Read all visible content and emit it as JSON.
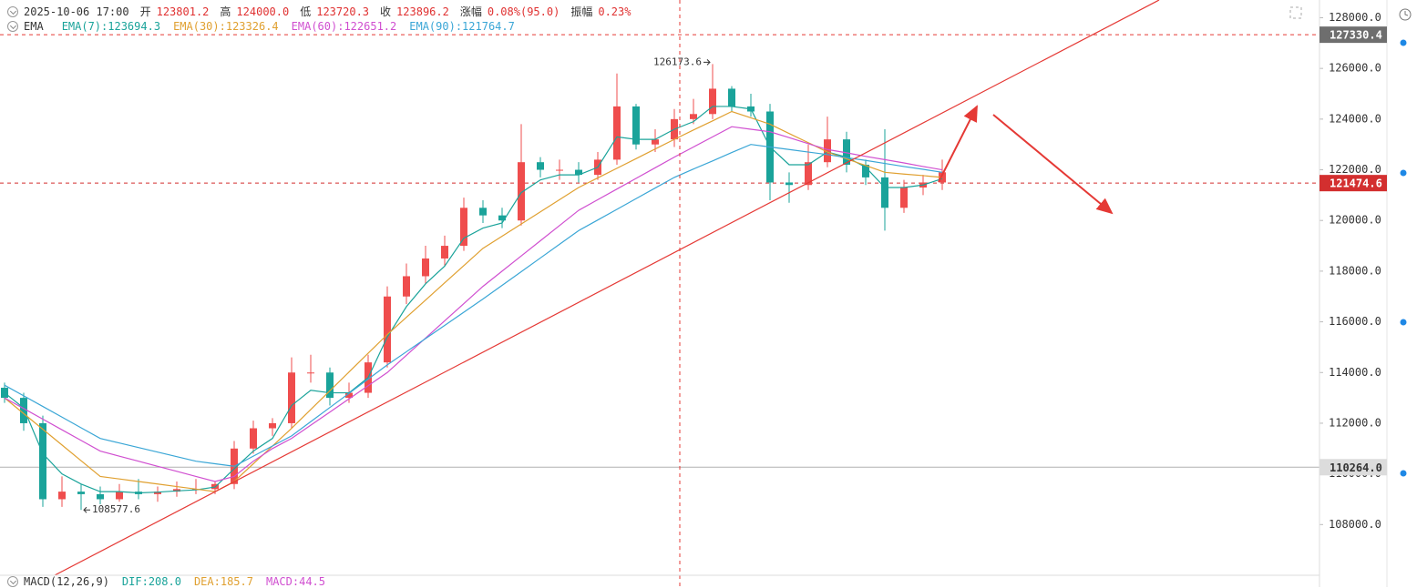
{
  "chart_data": {
    "type": "candlestick",
    "header": {
      "time": "2025-10-06 17:00",
      "fields": [
        {
          "label": "开",
          "value": "123801.2"
        },
        {
          "label": "高",
          "value": "124000.0"
        },
        {
          "label": "低",
          "value": "123720.3"
        },
        {
          "label": "收",
          "value": "123896.2"
        },
        {
          "label": "涨幅",
          "value": "0.08%(95.0)"
        },
        {
          "label": "振幅",
          "value": "0.23%"
        }
      ]
    },
    "indicator": "EMA",
    "macd": {
      "name": "MACD(12,26,9)",
      "items": [
        {
          "text": "DIF:208.0",
          "color": "#1aa39a"
        },
        {
          "text": "DEA:185.7",
          "color": "#e0a030"
        },
        {
          "text": "MACD:44.5",
          "color": "#d04fd0"
        }
      ]
    },
    "up_color": "#ef4d4d",
    "down_color": "#1aa39a",
    "categories": [
      null,
      null,
      null,
      null,
      null,
      null,
      null,
      null,
      null,
      null,
      null,
      null,
      null,
      null,
      null,
      null,
      null,
      null,
      null,
      null,
      null,
      null,
      null,
      null,
      null,
      null,
      null,
      null,
      null,
      null,
      null,
      null,
      null,
      null,
      null,
      null,
      null,
      null,
      null,
      null,
      null,
      null,
      null,
      null,
      null,
      null,
      null,
      null,
      null,
      null
    ],
    "open": [
      113400,
      113000,
      112000,
      109000,
      109300,
      109200,
      109000,
      109300,
      109200,
      109300,
      109400,
      109400,
      109600,
      111000,
      111800,
      112000,
      114000,
      114000,
      113000,
      113200,
      114400,
      117000,
      117800,
      118500,
      119000,
      120500,
      120200,
      120000,
      122300,
      122000,
      122000,
      121800,
      122400,
      124500,
      123000,
      123200,
      124000,
      124200,
      125200,
      124500,
      124300,
      121500,
      121400,
      122300,
      123200,
      122200,
      121700,
      120500,
      121300,
      121500
    ],
    "high": [
      113600,
      113200,
      112300,
      109900,
      109600,
      109500,
      109600,
      109800,
      109500,
      109700,
      109800,
      109700,
      111300,
      112100,
      112200,
      114600,
      114700,
      114200,
      113600,
      114700,
      117400,
      118300,
      119000,
      119400,
      120900,
      120800,
      120500,
      123800,
      122500,
      122400,
      122300,
      122700,
      125800,
      124600,
      123600,
      124400,
      124800,
      126173.6,
      125300,
      125000,
      124600,
      121900,
      123000,
      124100,
      123500,
      122400,
      123600,
      121600,
      121800,
      122400
    ],
    "low": [
      112800,
      111700,
      108700,
      108700,
      108577.6,
      108800,
      108900,
      109000,
      108900,
      109100,
      109200,
      109200,
      109400,
      110800,
      111500,
      111800,
      113600,
      112700,
      112800,
      113000,
      114200,
      116700,
      117500,
      118200,
      118800,
      119900,
      119700,
      119800,
      121700,
      121600,
      121500,
      121600,
      122200,
      122800,
      122700,
      122900,
      123800,
      124000,
      124300,
      124100,
      120800,
      120700,
      121200,
      122100,
      121900,
      121400,
      119600,
      120300,
      121000,
      121200
    ],
    "close": [
      113000,
      112000,
      109000,
      109300,
      109200,
      109000,
      109300,
      109200,
      109300,
      109400,
      109400,
      109600,
      111000,
      111800,
      112000,
      114000,
      114000,
      113000,
      113200,
      114400,
      117000,
      117800,
      118500,
      119000,
      120500,
      120200,
      120000,
      122300,
      122000,
      122000,
      121800,
      122400,
      124500,
      123000,
      123200,
      124000,
      124200,
      125200,
      124500,
      124300,
      121500,
      121400,
      122300,
      123200,
      122200,
      121700,
      120500,
      121300,
      121500,
      121900
    ],
    "series": [
      {
        "name": "EMA(7):123694.3",
        "color": "#1aa39a",
        "values": [
          113200,
          112600,
          110800,
          110000,
          109600,
          109300,
          109300,
          109250,
          109280,
          109330,
          109370,
          109480,
          110200,
          110900,
          111400,
          112700,
          113300,
          113200,
          113200,
          113800,
          115400,
          116600,
          117500,
          118200,
          119300,
          119700,
          119900,
          121100,
          121600,
          121800,
          121800,
          122100,
          123300,
          123200,
          123200,
          123600,
          123900,
          124500,
          124500,
          124400,
          122900,
          122200,
          122200,
          122700,
          122500,
          122100,
          121300,
          121300,
          121400,
          121650
        ]
      },
      {
        "name": "EMA(30):123326.4",
        "color": "#e0a030",
        "values": [
          113000,
          112380,
          111760,
          111140,
          110520,
          109900,
          109800,
          109700,
          109600,
          109500,
          109400,
          109300,
          109700,
          110400,
          111100,
          111800,
          112540,
          113280,
          114020,
          114760,
          115500,
          116180,
          116860,
          117540,
          118220,
          118900,
          119380,
          119860,
          120340,
          120820,
          121300,
          121680,
          122060,
          122440,
          122820,
          123200,
          123570,
          123930,
          124300,
          124050,
          123800,
          123430,
          123070,
          122700,
          122430,
          122170,
          121900,
          121830,
          121770,
          121700
        ]
      },
      {
        "name": "EMA(60):122651.2",
        "color": "#d04fd0",
        "values": [
          113000,
          112580,
          112160,
          111740,
          111320,
          110900,
          110700,
          110500,
          110300,
          110100,
          109900,
          109700,
          109900,
          110500,
          111000,
          111400,
          111920,
          112440,
          112960,
          113480,
          114000,
          114680,
          115360,
          116040,
          116720,
          117400,
          118000,
          118600,
          119200,
          119800,
          120400,
          120820,
          121240,
          121660,
          122080,
          122500,
          122900,
          123300,
          123700,
          123600,
          123500,
          123270,
          123030,
          122800,
          122670,
          122530,
          122400,
          122270,
          122130,
          122000
        ]
      },
      {
        "name": "EMA(90):121764.7",
        "color": "#3aa6d6",
        "values": [
          113500,
          113080,
          112660,
          112240,
          111820,
          111400,
          111220,
          111040,
          110860,
          110680,
          110500,
          110400,
          110300,
          110700,
          111100,
          111500,
          112060,
          112620,
          113180,
          113740,
          114300,
          114820,
          115340,
          115860,
          116380,
          116900,
          117440,
          117980,
          118520,
          119060,
          119600,
          120020,
          120440,
          120860,
          121280,
          121700,
          122030,
          122350,
          122680,
          123000,
          122900,
          122800,
          122700,
          122600,
          122480,
          122370,
          122250,
          122130,
          122020,
          121900
        ]
      }
    ],
    "ylim": [
      106000,
      128700
    ],
    "yticks": [
      {
        "value": 108000,
        "label": "108000.0"
      },
      {
        "value": 110000,
        "label": "110000.0"
      },
      {
        "value": 112000,
        "label": "112000.0"
      },
      {
        "value": 114000,
        "label": "114000.0"
      },
      {
        "value": 116000,
        "label": "116000.0"
      },
      {
        "value": 118000,
        "label": "118000.0"
      },
      {
        "value": 120000,
        "label": "120000.0"
      },
      {
        "value": 122000,
        "label": "122000.0"
      },
      {
        "value": 124000,
        "label": "124000.0"
      },
      {
        "value": 126000,
        "label": "126000.0"
      },
      {
        "value": 128000,
        "label": "128000.0"
      }
    ],
    "price_lines": [
      {
        "value": 127330.4,
        "label": "127330.4",
        "color": "#e53935",
        "dashed": true,
        "tag_bg": "#6e6e6e",
        "tag_fg": "#ffffff"
      },
      {
        "value": 121474.6,
        "label": "121474.6",
        "color": "#d32f2f",
        "dashed": true,
        "tag_bg": "#d32f2f",
        "tag_fg": "#ffffff"
      },
      {
        "value": 110264.0,
        "label": "110264.0",
        "color": "#b0b0b0",
        "dashed": false,
        "tag_bg": "#dcdcdc",
        "tag_fg": "#333333"
      }
    ],
    "max_index": 37,
    "min_index": 4
  }
}
